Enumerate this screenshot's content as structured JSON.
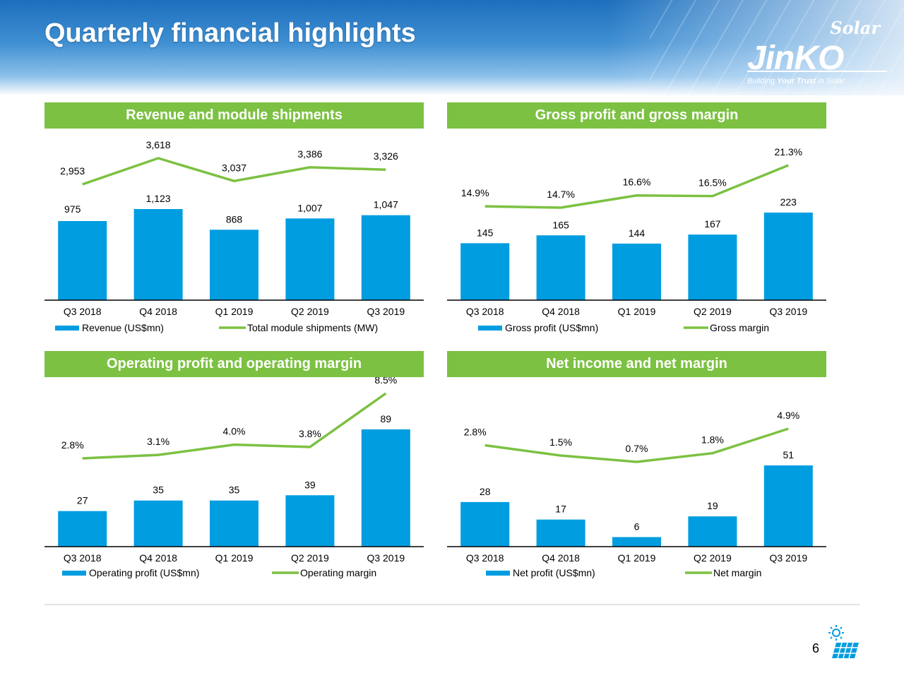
{
  "page": {
    "title": "Quarterly financial highlights",
    "number": "6"
  },
  "logo": {
    "script": "Solar",
    "brand": "JinKO",
    "tagline_pre": "Building ",
    "tagline_bold": "Your Trust",
    "tagline_post": " in Solar"
  },
  "colors": {
    "bar": "#009de0",
    "line": "#7cc142",
    "header_green": "#7cc142",
    "title_blue": "#1d6fbd"
  },
  "chart_data": [
    {
      "id": "rev",
      "type": "bar+line",
      "title": "Revenue and module shipments",
      "categories": [
        "Q3 2018",
        "Q4 2018",
        "Q1 2019",
        "Q2 2019",
        "Q3 2019"
      ],
      "bar": {
        "name": "Revenue (US$mn)",
        "values": [
          975,
          1123,
          868,
          1007,
          1047
        ],
        "labels": [
          "975",
          "1,123",
          "868",
          "1,007",
          "1,047"
        ]
      },
      "line": {
        "name": "Total module shipments (MW)",
        "values": [
          2953,
          3618,
          3037,
          3386,
          3326
        ],
        "labels": [
          "2,953",
          "3,618",
          "3,037",
          "3,386",
          "3,326"
        ]
      },
      "legend": "bottom"
    },
    {
      "id": "gp",
      "type": "bar+line",
      "title": "Gross profit and gross margin",
      "categories": [
        "Q3 2018",
        "Q4 2018",
        "Q1 2019",
        "Q2 2019",
        "Q3 2019"
      ],
      "bar": {
        "name": "Gross profit (US$mn)",
        "values": [
          145,
          165,
          144,
          167,
          223
        ],
        "labels": [
          "145",
          "165",
          "144",
          "167",
          "223"
        ]
      },
      "line": {
        "name": "Gross margin",
        "values": [
          14.9,
          14.7,
          16.6,
          16.5,
          21.3
        ],
        "labels": [
          "14.9%",
          "14.7%",
          "16.6%",
          "16.5%",
          "21.3%"
        ]
      },
      "legend": "bottom"
    },
    {
      "id": "op",
      "type": "bar+line",
      "title": "Operating profit and operating margin",
      "categories": [
        "Q3 2018",
        "Q4 2018",
        "Q1 2019",
        "Q2 2019",
        "Q3 2019"
      ],
      "bar": {
        "name": "Operating profit (US$mn)",
        "values": [
          27,
          35,
          35,
          39,
          89
        ],
        "labels": [
          "27",
          "35",
          "35",
          "39",
          "89"
        ]
      },
      "line": {
        "name": "Operating margin",
        "values": [
          2.8,
          3.1,
          4.0,
          3.8,
          8.5
        ],
        "labels": [
          "2.8%",
          "3.1%",
          "4.0%",
          "3.8%",
          "8.5%"
        ]
      },
      "legend": "bottom"
    },
    {
      "id": "ni",
      "type": "bar+line",
      "title": "Net income and net margin",
      "categories": [
        "Q3 2018",
        "Q4 2018",
        "Q1 2019",
        "Q2 2019",
        "Q3 2019"
      ],
      "bar": {
        "name": "Net profit (US$mn)",
        "values": [
          28,
          17,
          6,
          19,
          51
        ],
        "labels": [
          "28",
          "17",
          "6",
          "19",
          "51"
        ]
      },
      "line": {
        "name": "Net margin",
        "values": [
          2.8,
          1.5,
          0.7,
          1.8,
          4.9
        ],
        "labels": [
          "2.8%",
          "1.5%",
          "0.7%",
          "1.8%",
          "4.9%"
        ]
      },
      "legend": "bottom"
    }
  ]
}
